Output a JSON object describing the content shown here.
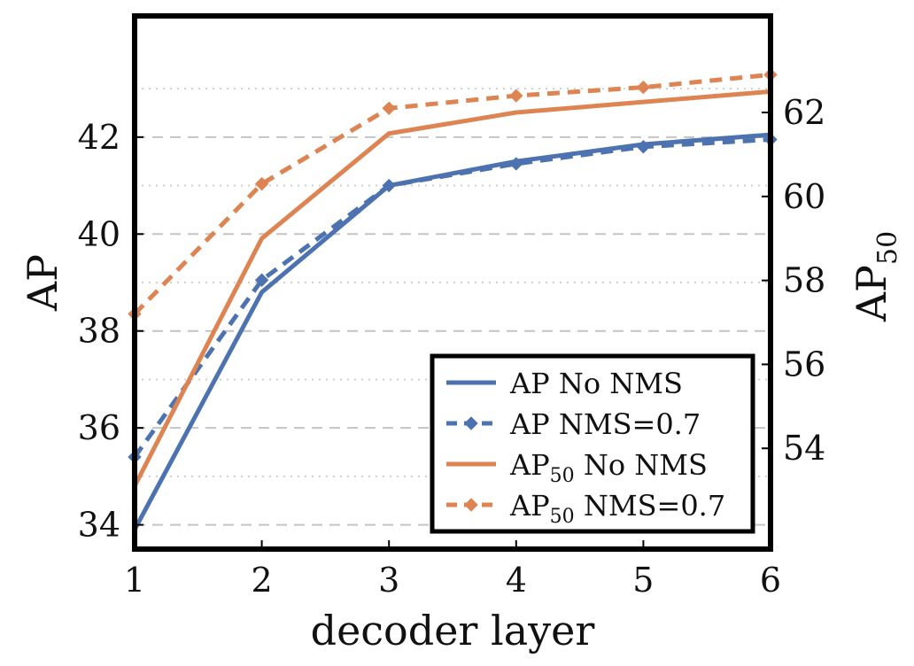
{
  "chart_data": {
    "type": "line",
    "xlabel": "decoder layer",
    "ylabel_left": "AP",
    "ylabel_right": {
      "base": "AP",
      "sub": "50"
    },
    "x": [
      1,
      2,
      3,
      4,
      5,
      6
    ],
    "x_ticks": [
      "1",
      "2",
      "3",
      "4",
      "5",
      "6"
    ],
    "xlim": [
      1,
      6
    ],
    "y_left": {
      "lim": [
        33.5,
        44.5
      ],
      "ticks": [
        34,
        36,
        38,
        40,
        42
      ],
      "tick_labels": [
        "34",
        "36",
        "38",
        "40",
        "42"
      ]
    },
    "y_right": {
      "lim": [
        51.6,
        64.3
      ],
      "ticks": [
        54,
        56,
        58,
        60,
        62
      ],
      "tick_labels": [
        "54",
        "56",
        "58",
        "60",
        "62"
      ]
    },
    "grid": {
      "major": "dashed",
      "minor": "dotted"
    },
    "legend_position": "bottom-right",
    "colors": {
      "blue": "#4c72b0",
      "orange": "#dd8452"
    },
    "series": [
      {
        "name": "AP No NMS",
        "legend": {
          "base": "AP No NMS",
          "sub": ""
        },
        "axis": "left",
        "color": "#4c72b0",
        "style": "solid",
        "marker": "none",
        "values": [
          33.9,
          38.8,
          41.0,
          41.5,
          41.85,
          42.05
        ]
      },
      {
        "name": "AP NMS=0.7",
        "legend": {
          "base": "AP NMS=0.7",
          "sub": ""
        },
        "axis": "left",
        "color": "#4c72b0",
        "style": "dashed",
        "marker": "diamond",
        "values": [
          35.4,
          39.05,
          41.0,
          41.45,
          41.8,
          41.95
        ]
      },
      {
        "name": "AP50 No NMS",
        "legend": {
          "base": "AP",
          "sub": "50",
          "rest": " No NMS"
        },
        "axis": "right",
        "color": "#dd8452",
        "style": "solid",
        "marker": "none",
        "values": [
          53.1,
          59.0,
          61.5,
          62.0,
          62.25,
          62.5
        ]
      },
      {
        "name": "AP50 NMS=0.7",
        "legend": {
          "base": "AP",
          "sub": "50",
          "rest": " NMS=0.7"
        },
        "axis": "right",
        "color": "#dd8452",
        "style": "dashed",
        "marker": "diamond",
        "values": [
          57.2,
          60.3,
          62.1,
          62.4,
          62.6,
          62.9
        ]
      }
    ]
  }
}
